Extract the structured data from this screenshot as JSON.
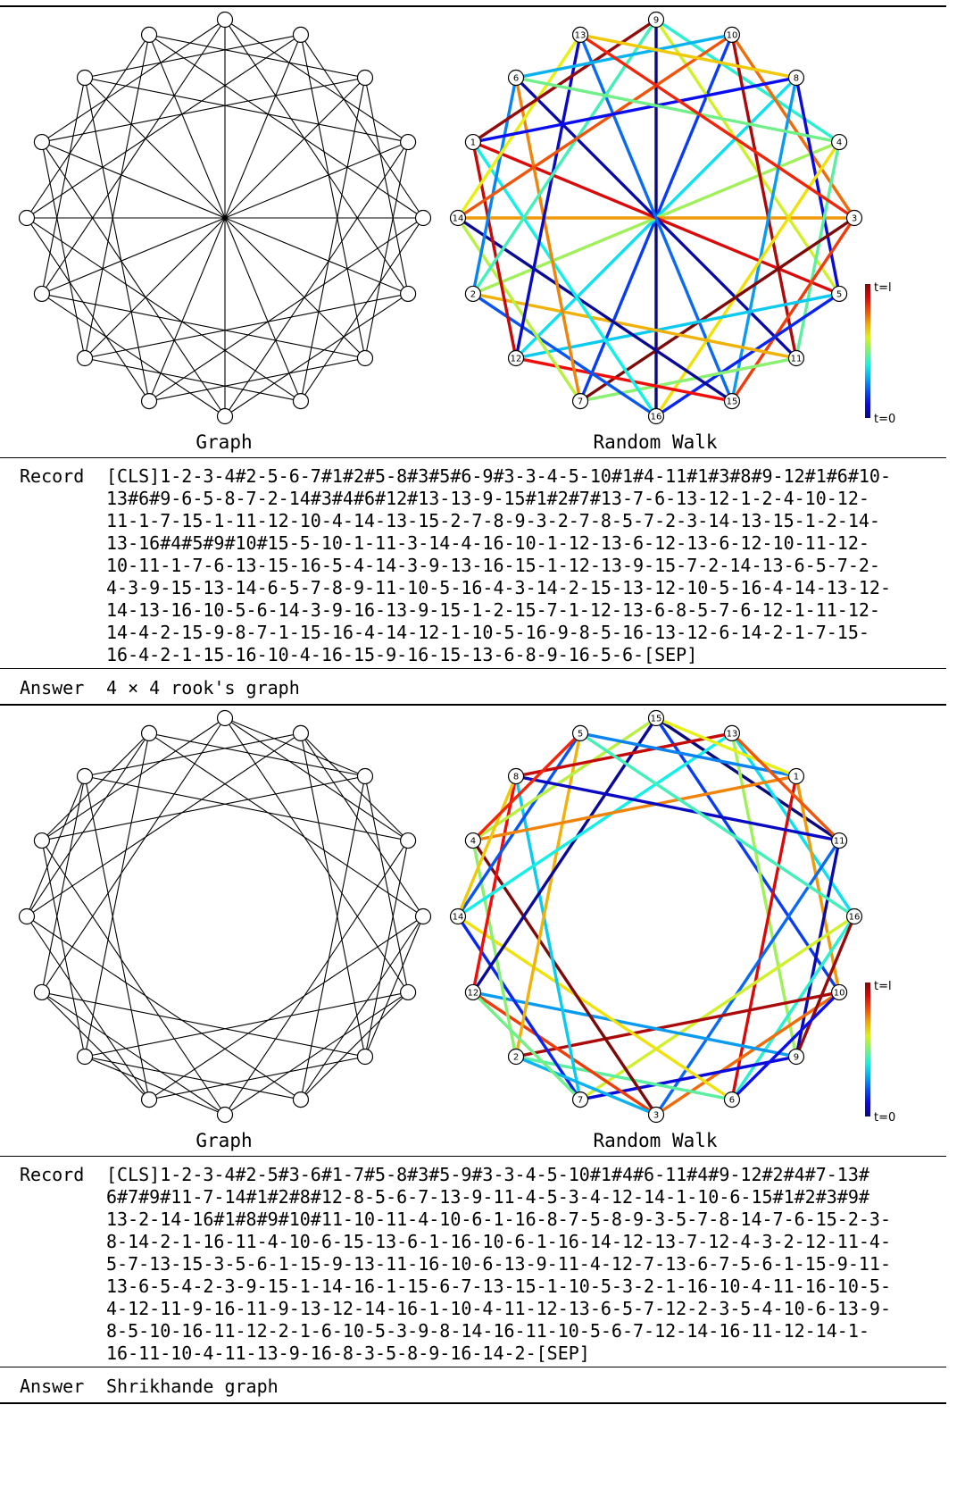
{
  "examples": [
    {
      "graph_caption": "Graph",
      "walk_caption": "Random Walk",
      "colorbar_top": "t=l",
      "colorbar_bottom": "t=0",
      "record_label": "Record",
      "answer_label": "Answer",
      "record_lines": [
        "[CLS]1-2-3-4#2-5-6-7#1#2#5-8#3#5#6-9#3-3-4-5-10#1#4-11#1#3#8#9-12#1#6#10-",
        "13#6#9-6-5-8-7-2-14#3#4#6#12#13-13-9-15#1#2#7#13-7-6-13-12-1-2-4-10-12-",
        "11-1-7-15-1-11-12-10-4-14-13-15-2-7-8-9-3-2-7-8-5-7-2-3-14-13-15-1-2-14-",
        "13-16#4#5#9#10#15-5-10-1-11-3-14-4-16-10-1-12-13-6-12-13-6-12-10-11-12-",
        "10-11-1-7-6-13-15-16-5-4-14-3-9-13-16-15-1-12-13-9-15-7-2-14-13-6-5-7-2-",
        "4-3-9-15-13-14-6-5-7-8-9-11-10-5-16-4-3-14-2-15-13-12-10-5-16-4-14-13-12-",
        "14-13-16-10-5-6-14-3-9-16-13-9-15-1-2-15-7-1-12-13-6-8-5-7-6-12-1-11-12-",
        "14-4-2-15-9-8-7-1-15-16-4-14-12-1-10-5-16-9-8-5-16-13-12-6-14-2-1-7-15-",
        "16-4-2-1-15-16-10-4-16-15-9-16-15-13-6-8-9-16-5-6-[SEP]"
      ],
      "answer": "4 × 4 rook's graph",
      "walk_node_labels": [
        "9",
        "10",
        "8",
        "4",
        "3",
        "5",
        "11",
        "15",
        "16",
        "7",
        "12",
        "2",
        "14",
        "1",
        "6",
        "13"
      ]
    },
    {
      "graph_caption": "Graph",
      "walk_caption": "Random Walk",
      "colorbar_top": "t=l",
      "colorbar_bottom": "t=0",
      "record_label": "Record",
      "answer_label": "Answer",
      "record_lines": [
        "[CLS]1-2-3-4#2-5#3-6#1-7#5-8#3#5-9#3-3-4-5-10#1#4#6-11#4#9-12#2#4#7-13#",
        "6#7#9#11-7-14#1#2#8#12-8-5-6-7-13-9-11-4-5-3-4-12-14-1-10-6-15#1#2#3#9#",
        "13-2-14-16#1#8#9#10#11-10-11-4-10-6-1-16-8-7-5-8-9-3-5-7-8-14-7-6-15-2-3-",
        "8-14-2-1-16-11-4-10-6-15-13-6-1-16-10-6-1-16-14-12-13-7-12-4-3-2-12-11-4-",
        "5-7-13-15-3-5-6-1-15-9-13-11-16-10-6-13-9-11-4-12-7-13-6-7-5-6-1-15-9-11-",
        "13-6-5-4-2-3-9-15-1-14-16-1-15-6-7-13-15-1-10-5-3-2-1-16-10-4-11-16-10-5-",
        "4-12-11-9-16-11-9-13-12-14-16-1-10-4-11-12-13-6-5-7-12-2-3-5-4-10-6-13-9-",
        "8-5-10-16-11-12-2-1-6-10-5-3-9-8-14-16-11-10-5-6-7-12-14-16-11-12-14-1-",
        "16-11-10-4-11-13-9-16-8-3-5-8-9-16-14-2-[SEP]"
      ],
      "answer": "Shrikhande graph",
      "walk_node_labels": [
        "15",
        "13",
        "1",
        "11",
        "16",
        "10",
        "9",
        "6",
        "3",
        "7",
        "2",
        "12",
        "14",
        "4",
        "8",
        "5"
      ]
    }
  ],
  "colors": {
    "line": "#000000",
    "rule": "#000000"
  }
}
